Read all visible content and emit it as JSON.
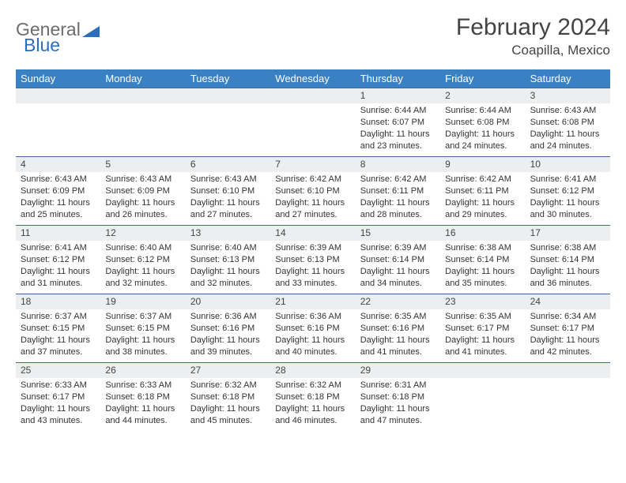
{
  "logo": {
    "part1": "General",
    "part2": "Blue"
  },
  "title": "February 2024",
  "location": "Coapilla, Mexico",
  "colors": {
    "header_bg": "#3a81c4",
    "header_text": "#ffffff",
    "row_border": "#3a6a9a",
    "daynum_bg": "#eceeef",
    "logo_gray": "#6c6c6c",
    "logo_blue": "#2a6db8",
    "text": "#333333"
  },
  "weekdays": [
    "Sunday",
    "Monday",
    "Tuesday",
    "Wednesday",
    "Thursday",
    "Friday",
    "Saturday"
  ],
  "weeks": [
    [
      {
        "n": "",
        "sr": "",
        "ss": "",
        "dl": ""
      },
      {
        "n": "",
        "sr": "",
        "ss": "",
        "dl": ""
      },
      {
        "n": "",
        "sr": "",
        "ss": "",
        "dl": ""
      },
      {
        "n": "",
        "sr": "",
        "ss": "",
        "dl": ""
      },
      {
        "n": "1",
        "sr": "Sunrise: 6:44 AM",
        "ss": "Sunset: 6:07 PM",
        "dl": "Daylight: 11 hours and 23 minutes."
      },
      {
        "n": "2",
        "sr": "Sunrise: 6:44 AM",
        "ss": "Sunset: 6:08 PM",
        "dl": "Daylight: 11 hours and 24 minutes."
      },
      {
        "n": "3",
        "sr": "Sunrise: 6:43 AM",
        "ss": "Sunset: 6:08 PM",
        "dl": "Daylight: 11 hours and 24 minutes."
      }
    ],
    [
      {
        "n": "4",
        "sr": "Sunrise: 6:43 AM",
        "ss": "Sunset: 6:09 PM",
        "dl": "Daylight: 11 hours and 25 minutes."
      },
      {
        "n": "5",
        "sr": "Sunrise: 6:43 AM",
        "ss": "Sunset: 6:09 PM",
        "dl": "Daylight: 11 hours and 26 minutes."
      },
      {
        "n": "6",
        "sr": "Sunrise: 6:43 AM",
        "ss": "Sunset: 6:10 PM",
        "dl": "Daylight: 11 hours and 27 minutes."
      },
      {
        "n": "7",
        "sr": "Sunrise: 6:42 AM",
        "ss": "Sunset: 6:10 PM",
        "dl": "Daylight: 11 hours and 27 minutes."
      },
      {
        "n": "8",
        "sr": "Sunrise: 6:42 AM",
        "ss": "Sunset: 6:11 PM",
        "dl": "Daylight: 11 hours and 28 minutes."
      },
      {
        "n": "9",
        "sr": "Sunrise: 6:42 AM",
        "ss": "Sunset: 6:11 PM",
        "dl": "Daylight: 11 hours and 29 minutes."
      },
      {
        "n": "10",
        "sr": "Sunrise: 6:41 AM",
        "ss": "Sunset: 6:12 PM",
        "dl": "Daylight: 11 hours and 30 minutes."
      }
    ],
    [
      {
        "n": "11",
        "sr": "Sunrise: 6:41 AM",
        "ss": "Sunset: 6:12 PM",
        "dl": "Daylight: 11 hours and 31 minutes."
      },
      {
        "n": "12",
        "sr": "Sunrise: 6:40 AM",
        "ss": "Sunset: 6:12 PM",
        "dl": "Daylight: 11 hours and 32 minutes."
      },
      {
        "n": "13",
        "sr": "Sunrise: 6:40 AM",
        "ss": "Sunset: 6:13 PM",
        "dl": "Daylight: 11 hours and 32 minutes."
      },
      {
        "n": "14",
        "sr": "Sunrise: 6:39 AM",
        "ss": "Sunset: 6:13 PM",
        "dl": "Daylight: 11 hours and 33 minutes."
      },
      {
        "n": "15",
        "sr": "Sunrise: 6:39 AM",
        "ss": "Sunset: 6:14 PM",
        "dl": "Daylight: 11 hours and 34 minutes."
      },
      {
        "n": "16",
        "sr": "Sunrise: 6:38 AM",
        "ss": "Sunset: 6:14 PM",
        "dl": "Daylight: 11 hours and 35 minutes."
      },
      {
        "n": "17",
        "sr": "Sunrise: 6:38 AM",
        "ss": "Sunset: 6:14 PM",
        "dl": "Daylight: 11 hours and 36 minutes."
      }
    ],
    [
      {
        "n": "18",
        "sr": "Sunrise: 6:37 AM",
        "ss": "Sunset: 6:15 PM",
        "dl": "Daylight: 11 hours and 37 minutes."
      },
      {
        "n": "19",
        "sr": "Sunrise: 6:37 AM",
        "ss": "Sunset: 6:15 PM",
        "dl": "Daylight: 11 hours and 38 minutes."
      },
      {
        "n": "20",
        "sr": "Sunrise: 6:36 AM",
        "ss": "Sunset: 6:16 PM",
        "dl": "Daylight: 11 hours and 39 minutes."
      },
      {
        "n": "21",
        "sr": "Sunrise: 6:36 AM",
        "ss": "Sunset: 6:16 PM",
        "dl": "Daylight: 11 hours and 40 minutes."
      },
      {
        "n": "22",
        "sr": "Sunrise: 6:35 AM",
        "ss": "Sunset: 6:16 PM",
        "dl": "Daylight: 11 hours and 41 minutes."
      },
      {
        "n": "23",
        "sr": "Sunrise: 6:35 AM",
        "ss": "Sunset: 6:17 PM",
        "dl": "Daylight: 11 hours and 41 minutes."
      },
      {
        "n": "24",
        "sr": "Sunrise: 6:34 AM",
        "ss": "Sunset: 6:17 PM",
        "dl": "Daylight: 11 hours and 42 minutes."
      }
    ],
    [
      {
        "n": "25",
        "sr": "Sunrise: 6:33 AM",
        "ss": "Sunset: 6:17 PM",
        "dl": "Daylight: 11 hours and 43 minutes."
      },
      {
        "n": "26",
        "sr": "Sunrise: 6:33 AM",
        "ss": "Sunset: 6:18 PM",
        "dl": "Daylight: 11 hours and 44 minutes."
      },
      {
        "n": "27",
        "sr": "Sunrise: 6:32 AM",
        "ss": "Sunset: 6:18 PM",
        "dl": "Daylight: 11 hours and 45 minutes."
      },
      {
        "n": "28",
        "sr": "Sunrise: 6:32 AM",
        "ss": "Sunset: 6:18 PM",
        "dl": "Daylight: 11 hours and 46 minutes."
      },
      {
        "n": "29",
        "sr": "Sunrise: 6:31 AM",
        "ss": "Sunset: 6:18 PM",
        "dl": "Daylight: 11 hours and 47 minutes."
      },
      {
        "n": "",
        "sr": "",
        "ss": "",
        "dl": ""
      },
      {
        "n": "",
        "sr": "",
        "ss": "",
        "dl": ""
      }
    ]
  ]
}
